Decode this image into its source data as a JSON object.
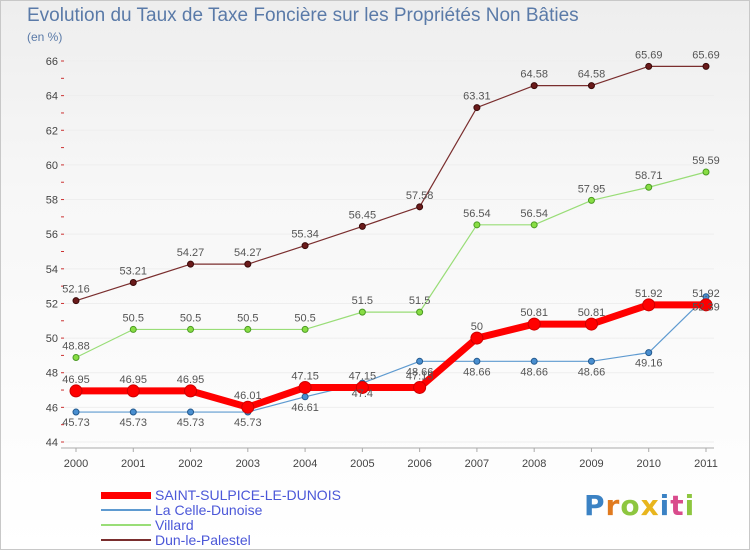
{
  "title": "Evolution du Taux de Taxe Foncière sur les Propriétés Non Bâties",
  "subtitle": "(en %)",
  "logo_text": "Proxiti",
  "chart_data": {
    "type": "line",
    "title": "Evolution du Taux de Taxe Foncière sur les Propriétés Non Bâties",
    "ylabel": "(en %)",
    "xlabel": "",
    "ylim": [
      44,
      66
    ],
    "yticks": [
      44,
      46,
      48,
      50,
      52,
      54,
      56,
      58,
      60,
      62,
      64,
      66
    ],
    "categories": [
      "2000",
      "2001",
      "2002",
      "2003",
      "2004",
      "2005",
      "2006",
      "2007",
      "2008",
      "2009",
      "2010",
      "2011"
    ],
    "series": [
      {
        "name": "SAINT-SULPICE-LE-DUNOIS",
        "color": "#ff0000",
        "values": [
          46.95,
          46.95,
          46.95,
          46.01,
          47.15,
          47.15,
          47.15,
          50,
          50.81,
          50.81,
          51.92,
          51.92
        ]
      },
      {
        "name": "La Celle-Dunoise",
        "color": "#5e9ad0",
        "values": [
          45.73,
          45.73,
          45.73,
          45.73,
          46.61,
          47.4,
          48.66,
          48.66,
          48.66,
          48.66,
          49.16,
          52.39
        ]
      },
      {
        "name": "Villard",
        "color": "#99dd77",
        "values": [
          48.88,
          50.5,
          50.5,
          50.5,
          50.5,
          51.5,
          51.5,
          56.54,
          56.54,
          57.95,
          58.71,
          59.59
        ]
      },
      {
        "name": "Dun-le-Palestel",
        "color": "#7a2e2e",
        "values": [
          52.16,
          53.21,
          54.27,
          54.27,
          55.34,
          56.45,
          57.58,
          63.31,
          64.58,
          64.58,
          65.69,
          65.69
        ]
      }
    ]
  },
  "colors": {
    "text": "#444444",
    "grid": "#eeeeee",
    "title": "#5a7aa8",
    "legend_text": "#4b57d8"
  }
}
